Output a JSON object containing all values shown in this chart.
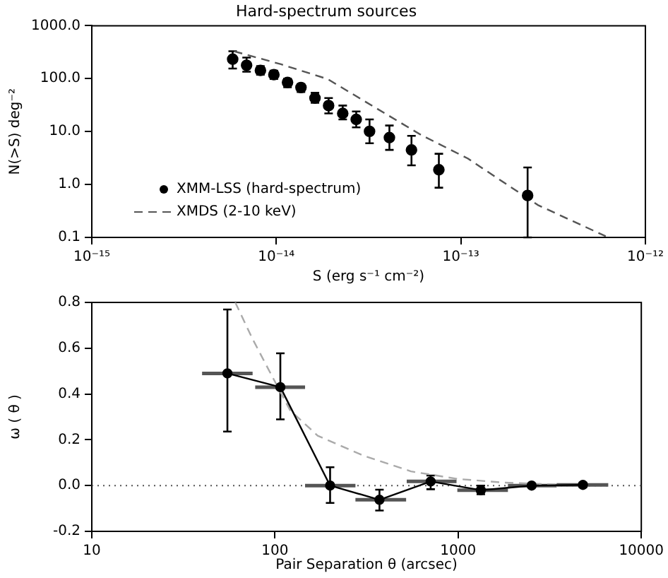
{
  "chart_data": [
    {
      "type": "scatter",
      "title": "Hard-spectrum sources",
      "xlabel": "S (erg s⁻¹ cm⁻²)",
      "ylabel": "N(>S) deg⁻²",
      "log": "xy",
      "grid": false,
      "legend": "bottom left",
      "xlim": [
        1e-15,
        1e-12
      ],
      "ylim": [
        0.1,
        1000
      ],
      "xticks": [
        {
          "value": 1e-15,
          "label": "10⁻¹⁵"
        },
        {
          "value": 1e-14,
          "label": "10⁻¹⁴"
        },
        {
          "value": 1e-13,
          "label": "10⁻¹³"
        },
        {
          "value": 1e-12,
          "label": "10⁻¹²"
        }
      ],
      "yticks": [
        0.1,
        {
          "value": 1,
          "label": "1.0"
        },
        {
          "value": 10,
          "label": "10.0"
        },
        {
          "value": 100,
          "label": "100.0"
        },
        {
          "value": 1000,
          "label": "1000.0"
        }
      ],
      "series": [
        {
          "name": "XMM-LSS (hard-spectrum)",
          "color": "#000000",
          "marker": "circle",
          "x": [
            5.8e-15,
            6.9e-15,
            8.2e-15,
            9.7e-15,
            1.15e-14,
            1.36e-14,
            1.62e-14,
            1.92e-14,
            2.29e-14,
            2.71e-14,
            3.2e-14,
            4.1e-14,
            5.4e-14,
            7.6e-14,
            2.3e-13
          ],
          "values": [
            233,
            179,
            143,
            119,
            85,
            68,
            43,
            31,
            22,
            17,
            10.1,
            7.7,
            4.5,
            1.9,
            0.62
          ],
          "errors": [
            [
              155,
              329
            ],
            [
              135,
              250
            ],
            [
              119,
              172
            ],
            [
              99,
              141
            ],
            [
              69,
              100
            ],
            [
              56,
              79
            ],
            [
              35,
              54
            ],
            [
              22,
              43
            ],
            [
              17,
              31
            ],
            [
              12,
              24
            ],
            [
              6.0,
              17
            ],
            [
              4.5,
              13
            ],
            [
              2.3,
              8.3
            ],
            [
              0.87,
              3.8
            ],
            [
              0.1,
              2.1
            ]
          ]
        },
        {
          "name": "XMDS (2-10 keV)",
          "type": "line",
          "color": "#555555",
          "marker": "none",
          "line_style": "dashed",
          "x": [
            5.9e-15,
            1.06e-14,
            1.9e-14,
            3.4e-14,
            6.1e-14,
            1.09e-13,
            2.61e-13,
            6.1e-13
          ],
          "values": [
            329,
            187,
            98,
            29,
            8.6,
            3.1,
            0.41,
            0.105
          ]
        }
      ]
    },
    {
      "type": "line",
      "xlabel": "Pair Separation θ (arcsec)",
      "ylabel": "ω ( θ )",
      "log": "x",
      "grid": false,
      "legend": false,
      "xlim": [
        10,
        10000
      ],
      "ylim": [
        -0.2,
        0.8
      ],
      "xticks": [
        10,
        100,
        1000,
        10000
      ],
      "yticks": [
        -0.2,
        {
          "value": 0,
          "label": "0.0"
        },
        0.2,
        0.4,
        0.6,
        0.8
      ],
      "ref_lines": [
        {
          "axis": "y",
          "value": 0,
          "color": "#555555",
          "line_style": "dotted"
        }
      ],
      "series": [
        {
          "color": "#000000",
          "marker": "circle",
          "line_style": "solid",
          "x": [
            55,
            107,
            200,
            372,
            708,
            1330,
            2520,
            4800
          ],
          "values": [
            0.49,
            0.43,
            0.0,
            -0.062,
            0.018,
            -0.02,
            0.0,
            0.003
          ],
          "errors": [
            [
              0.236,
              0.769
            ],
            [
              0.289,
              0.578
            ],
            [
              -0.076,
              0.08
            ],
            [
              -0.109,
              -0.018
            ],
            [
              -0.016,
              0.044
            ],
            [
              -0.038,
              0.0
            ],
            [
              -0.007,
              0.007
            ],
            [
              -0.007,
              0.013
            ]
          ],
          "xerrors": [
            [
              40,
              75.5
            ],
            [
              78,
              146
            ],
            [
              146,
              275
            ],
            [
              275,
              520
            ],
            [
              524,
              980
            ],
            [
              990,
              1870
            ],
            [
              1870,
              3450
            ],
            [
              3450,
              6600
            ]
          ]
        },
        {
          "color": "#aaaaaa",
          "marker": "none",
          "line_style": "dashed",
          "x": [
            60.7,
            75.5,
            95.5,
            121,
            171,
            308,
            553,
            993,
            1786,
            3600
          ],
          "values": [
            0.8,
            0.64,
            0.484,
            0.329,
            0.218,
            0.129,
            0.062,
            0.029,
            0.013,
            0.004
          ]
        }
      ]
    }
  ]
}
